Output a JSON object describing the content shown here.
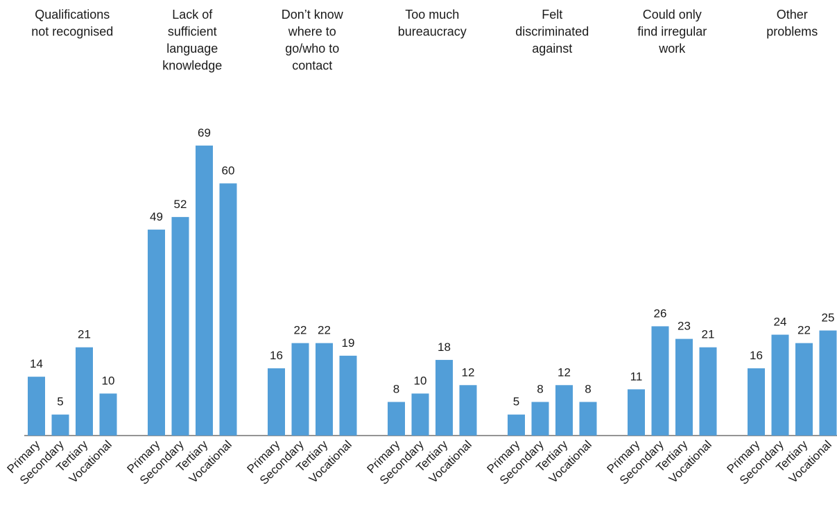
{
  "colors": {
    "bar": "#529ed8",
    "axis": "#555555",
    "text": "#1a1a1a"
  },
  "chart_data": {
    "type": "bar",
    "title": "",
    "xlabel": "",
    "ylabel": "",
    "ylim": [
      0,
      75
    ],
    "grid": false,
    "legend": "none",
    "subcategories": [
      "Primary",
      "Secondary",
      "Tertiary",
      "Vocational"
    ],
    "groups": [
      {
        "title_lines": [
          "Qualifications",
          "not recognised"
        ],
        "values": [
          14,
          5,
          21,
          10
        ]
      },
      {
        "title_lines": [
          "Lack of",
          "sufficient",
          "language",
          "knowledge"
        ],
        "values": [
          49,
          52,
          69,
          60
        ]
      },
      {
        "title_lines": [
          "Don’t know",
          "where to",
          "go/who to",
          "contact"
        ],
        "values": [
          16,
          22,
          22,
          19
        ]
      },
      {
        "title_lines": [
          "Too much",
          "bureaucracy"
        ],
        "values": [
          8,
          10,
          18,
          12
        ]
      },
      {
        "title_lines": [
          "Felt",
          "discriminated",
          "against"
        ],
        "values": [
          5,
          8,
          12,
          8
        ]
      },
      {
        "title_lines": [
          "Could only",
          "find irregular",
          "work"
        ],
        "values": [
          11,
          26,
          23,
          21
        ]
      },
      {
        "title_lines": [
          "Other",
          "problems"
        ],
        "values": [
          16,
          24,
          22,
          25
        ]
      }
    ]
  }
}
